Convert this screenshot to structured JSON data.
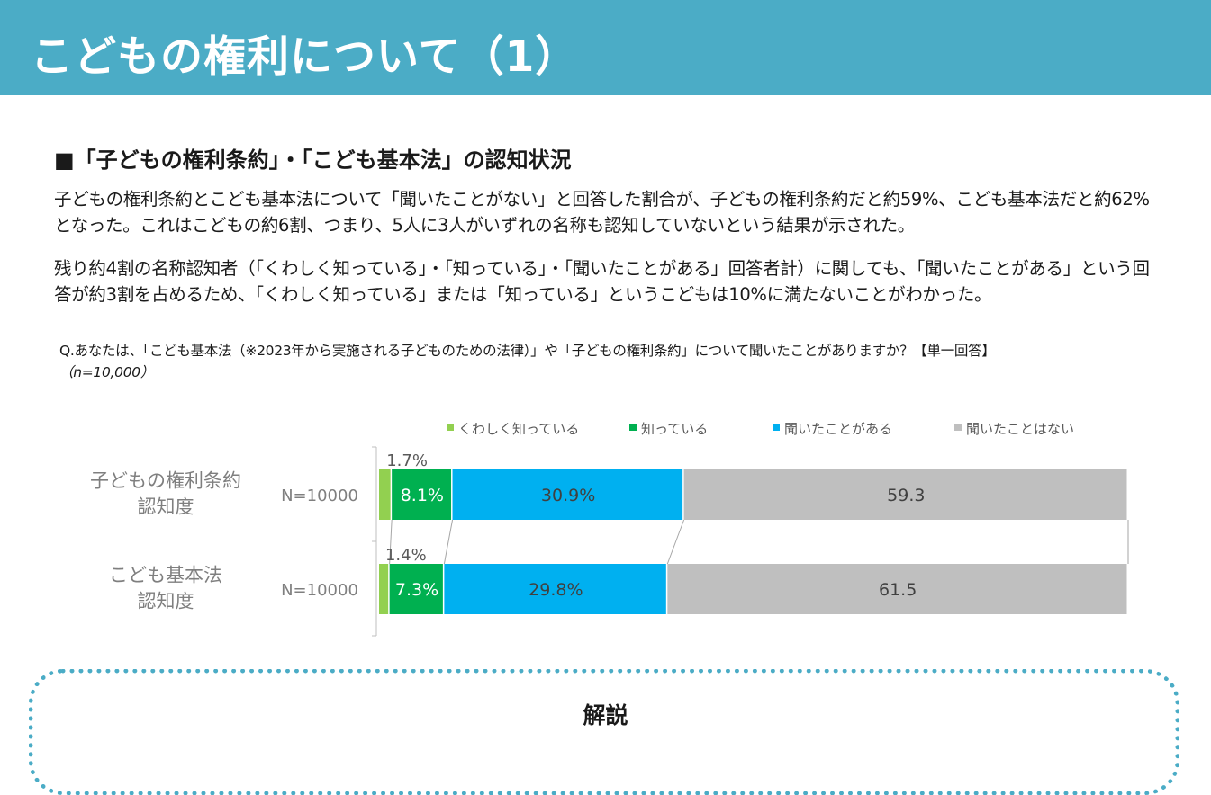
{
  "header": {
    "title": "こどもの権利について（1）"
  },
  "section": {
    "heading": "■「子どもの権利条約」・「こども基本法」の認知状況",
    "paragraph1": "子どもの権利条約とこども基本法について「聞いたことがない」と回答した割合が、子どもの権利条約だと約59%、こども基本法だと約62%となった。これはこどもの約6割、つまり、5人に3人がいずれの名称も認知していないという結果が示された。",
    "paragraph2": "残り約4割の名称認知者（「くわしく知っている」・「知っている」・「聞いたことがある」回答者計）に関しても、「聞いたことがある」という回答が約3割を占めるため、「くわしく知っている」または「知っている」というこどもは10%に満たないことがわかった。"
  },
  "question": {
    "text": "Q.あなたは、「こども基本法（※2023年から実施される子どものための法律）」や「子どもの権利条約」について聞いたことがありますか？【単一回答】",
    "sample": "（n=10,000）"
  },
  "chart_data": {
    "type": "bar",
    "orientation": "horizontal",
    "stacked": true,
    "xlim": [
      0,
      100
    ],
    "legend_position": "top",
    "categories": [
      "子どもの権利条約\n認知度",
      "こども基本法\n認知度"
    ],
    "n_labels": [
      "N=10000",
      "N=10000"
    ],
    "series": [
      {
        "name": "くわしく知っている",
        "color": "#92d050",
        "values": [
          1.7,
          1.4
        ],
        "labels": [
          "1.7%",
          "1.4%"
        ]
      },
      {
        "name": "知っている",
        "color": "#00b050",
        "values": [
          8.1,
          7.3
        ],
        "labels": [
          "8.1%",
          "7.3%"
        ]
      },
      {
        "name": "聞いたことがある",
        "color": "#00b0f0",
        "values": [
          30.9,
          29.8
        ],
        "labels": [
          "30.9%",
          "29.8%"
        ]
      },
      {
        "name": "聞いたことはない",
        "color": "#bfbfbf",
        "values": [
          59.3,
          61.5
        ],
        "labels": [
          "59.3",
          "61.5"
        ]
      }
    ]
  },
  "commentary": {
    "label": "解説"
  }
}
